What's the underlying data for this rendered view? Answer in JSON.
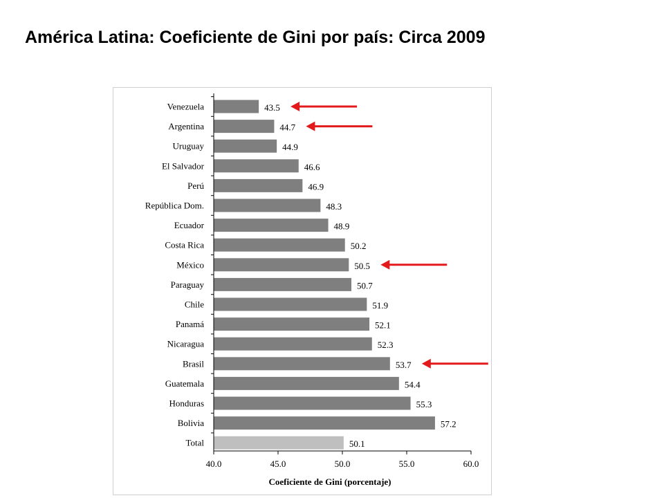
{
  "slide": {
    "title": "América Latina: Coeficiente de Gini por país: Circa 2009"
  },
  "colors": {
    "bar": "#7f7f7f",
    "total_bar": "#bfbfbf",
    "arrow": "#e31a1c",
    "axis": "#000000"
  },
  "chart_data": {
    "type": "bar",
    "orientation": "horizontal",
    "title": "",
    "xlabel": "Coeficiente de Gini (porcentaje)",
    "ylabel": "",
    "xlim": [
      40.0,
      60.0
    ],
    "xticks": [
      "40.0",
      "45.0",
      "50.0",
      "55.0",
      "60.0"
    ],
    "grid": false,
    "legend": "none",
    "categories": [
      "Venezuela",
      "Argentina",
      "Uruguay",
      "El Salvador",
      "Perú",
      "República Dom.",
      "Ecuador",
      "Costa Rica",
      "México",
      "Paraguay",
      "Chile",
      "Panamá",
      "Nicaragua",
      "Brasil",
      "Guatemala",
      "Honduras",
      "Bolivia",
      "Total"
    ],
    "values": [
      43.5,
      44.7,
      44.9,
      46.6,
      46.9,
      48.3,
      48.9,
      50.2,
      50.5,
      50.7,
      51.9,
      52.1,
      52.3,
      53.7,
      54.4,
      55.3,
      57.2,
      50.1
    ],
    "value_labels": [
      "43.5",
      "44.7",
      "44.9",
      "46.6",
      "46.9",
      "48.3",
      "48.9",
      "50.2",
      "50.5",
      "50.7",
      "51.9",
      "52.1",
      "52.3",
      "53.7",
      "54.4",
      "55.3",
      "57.2",
      "50.1"
    ],
    "highlighted_total": "Total",
    "arrow_annotations": [
      "Venezuela",
      "Argentina",
      "México",
      "Brasil"
    ]
  }
}
